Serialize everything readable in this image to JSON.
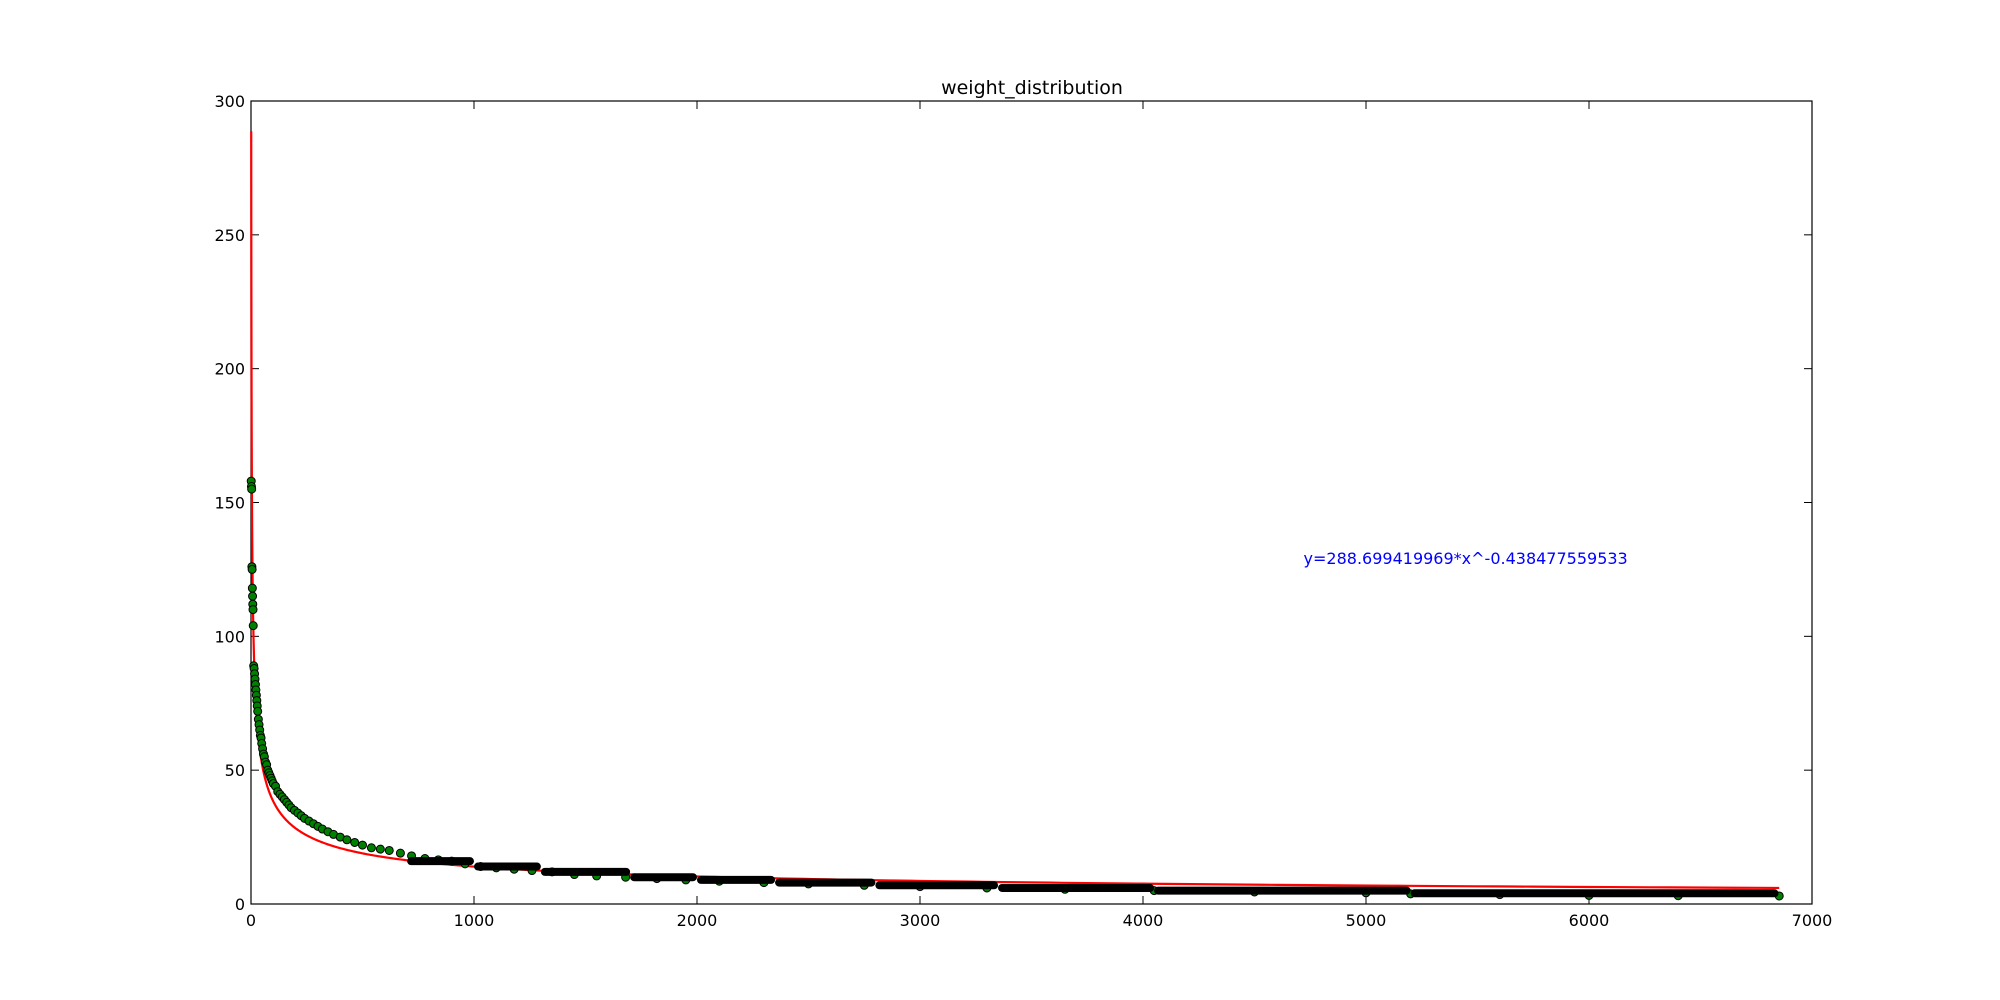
{
  "chart_data": {
    "type": "scatter",
    "title": "weight_distribution",
    "xlabel": "",
    "ylabel": "",
    "xlim": [
      0,
      7000
    ],
    "ylim": [
      0,
      300
    ],
    "x_ticks": [
      0,
      1000,
      2000,
      3000,
      4000,
      5000,
      6000,
      7000
    ],
    "y_ticks": [
      0,
      50,
      100,
      150,
      200,
      250,
      300
    ],
    "x_tick_labels": [
      "0",
      "1000",
      "2000",
      "3000",
      "4000",
      "5000",
      "6000",
      "7000"
    ],
    "y_tick_labels": [
      "0",
      "50",
      "100",
      "150",
      "200",
      "250",
      "300"
    ],
    "grid": false,
    "legend": "none",
    "series": [
      {
        "kind": "scatter",
        "marker_color": "#008000",
        "marker_edge_color": "#000000",
        "points": [
          [
            1,
            158
          ],
          [
            2,
            156
          ],
          [
            3,
            155
          ],
          [
            4,
            126
          ],
          [
            5,
            125
          ],
          [
            6,
            118
          ],
          [
            7,
            115
          ],
          [
            8,
            112
          ],
          [
            9,
            110
          ],
          [
            10,
            104
          ],
          [
            12,
            89
          ],
          [
            14,
            88
          ],
          [
            16,
            86
          ],
          [
            18,
            84
          ],
          [
            20,
            82
          ],
          [
            22,
            80
          ],
          [
            24,
            78
          ],
          [
            26,
            76
          ],
          [
            28,
            74
          ],
          [
            30,
            72
          ],
          [
            33,
            69
          ],
          [
            36,
            67
          ],
          [
            39,
            65
          ],
          [
            42,
            63
          ],
          [
            45,
            62
          ],
          [
            48,
            60
          ],
          [
            52,
            58
          ],
          [
            56,
            56
          ],
          [
            60,
            55
          ],
          [
            65,
            53
          ],
          [
            70,
            52
          ],
          [
            75,
            50
          ],
          [
            80,
            49
          ],
          [
            85,
            48
          ],
          [
            90,
            47
          ],
          [
            95,
            46
          ],
          [
            100,
            45
          ],
          [
            110,
            44
          ],
          [
            120,
            42
          ],
          [
            130,
            41
          ],
          [
            140,
            40
          ],
          [
            150,
            39
          ],
          [
            160,
            38
          ],
          [
            170,
            37
          ],
          [
            180,
            36
          ],
          [
            195,
            35
          ],
          [
            210,
            34
          ],
          [
            225,
            33
          ],
          [
            240,
            32
          ],
          [
            260,
            31
          ],
          [
            280,
            30
          ],
          [
            300,
            29
          ],
          [
            320,
            28
          ],
          [
            345,
            27
          ],
          [
            370,
            26
          ],
          [
            400,
            25
          ],
          [
            430,
            24
          ],
          [
            465,
            23
          ],
          [
            500,
            22
          ],
          [
            540,
            21
          ],
          [
            580,
            20.5
          ],
          [
            620,
            20
          ],
          [
            670,
            19
          ],
          [
            720,
            18
          ],
          [
            780,
            17
          ],
          [
            840,
            16.5
          ],
          [
            900,
            16
          ],
          [
            960,
            15
          ],
          [
            1030,
            14
          ],
          [
            1100,
            13.5
          ],
          [
            1180,
            13
          ],
          [
            1260,
            12.5
          ],
          [
            1350,
            12
          ],
          [
            1450,
            11
          ],
          [
            1550,
            10.5
          ],
          [
            1680,
            10
          ],
          [
            1820,
            9.5
          ],
          [
            1950,
            9
          ],
          [
            2100,
            8.5
          ],
          [
            2300,
            8
          ],
          [
            2500,
            7.5
          ],
          [
            2750,
            7
          ],
          [
            3000,
            6.5
          ],
          [
            3300,
            6
          ],
          [
            3650,
            5.5
          ],
          [
            4050,
            5
          ],
          [
            4500,
            4.5
          ],
          [
            5000,
            4.2
          ],
          [
            5200,
            3.8
          ],
          [
            5600,
            3.5
          ],
          [
            6000,
            3.2
          ],
          [
            6400,
            3.1
          ],
          [
            6853,
            3
          ]
        ]
      },
      {
        "kind": "line",
        "color": "#ff0000",
        "fit_a": 288.699419969,
        "fit_b": -0.438477559533,
        "x_range": [
          1,
          6853
        ]
      }
    ],
    "annotations": [
      {
        "text": "y=288.699419969*x^-0.438477559533",
        "x": 4720,
        "y": 127,
        "color": "#0000ff"
      }
    ]
  }
}
